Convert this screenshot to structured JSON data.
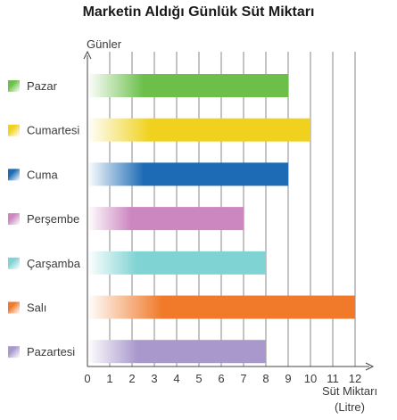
{
  "chart_data": {
    "type": "bar",
    "orientation": "horizontal",
    "title": "Marketin Aldığı Günlük Süt Miktarı",
    "ylabel": "Günler",
    "xlabel_line1": "Süt Miktarı",
    "xlabel_line2": "(Litre)",
    "xlim": [
      0,
      12
    ],
    "x_ticks": [
      "0",
      "1",
      "2",
      "3",
      "4",
      "5",
      "6",
      "7",
      "8",
      "9",
      "10",
      "11",
      "12"
    ],
    "grid": true,
    "legend": "left",
    "categories": [
      "Pazar",
      "Cumartesi",
      "Cuma",
      "Perşembe",
      "Çarşamba",
      "Salı",
      "Pazartesi"
    ],
    "values": [
      9,
      10,
      9,
      7,
      8,
      12,
      8
    ],
    "colors": [
      "#6cc04a",
      "#f0d21e",
      "#1d6bb5",
      "#cc86c0",
      "#7fd3d3",
      "#f07a2a",
      "#a898cc"
    ]
  }
}
